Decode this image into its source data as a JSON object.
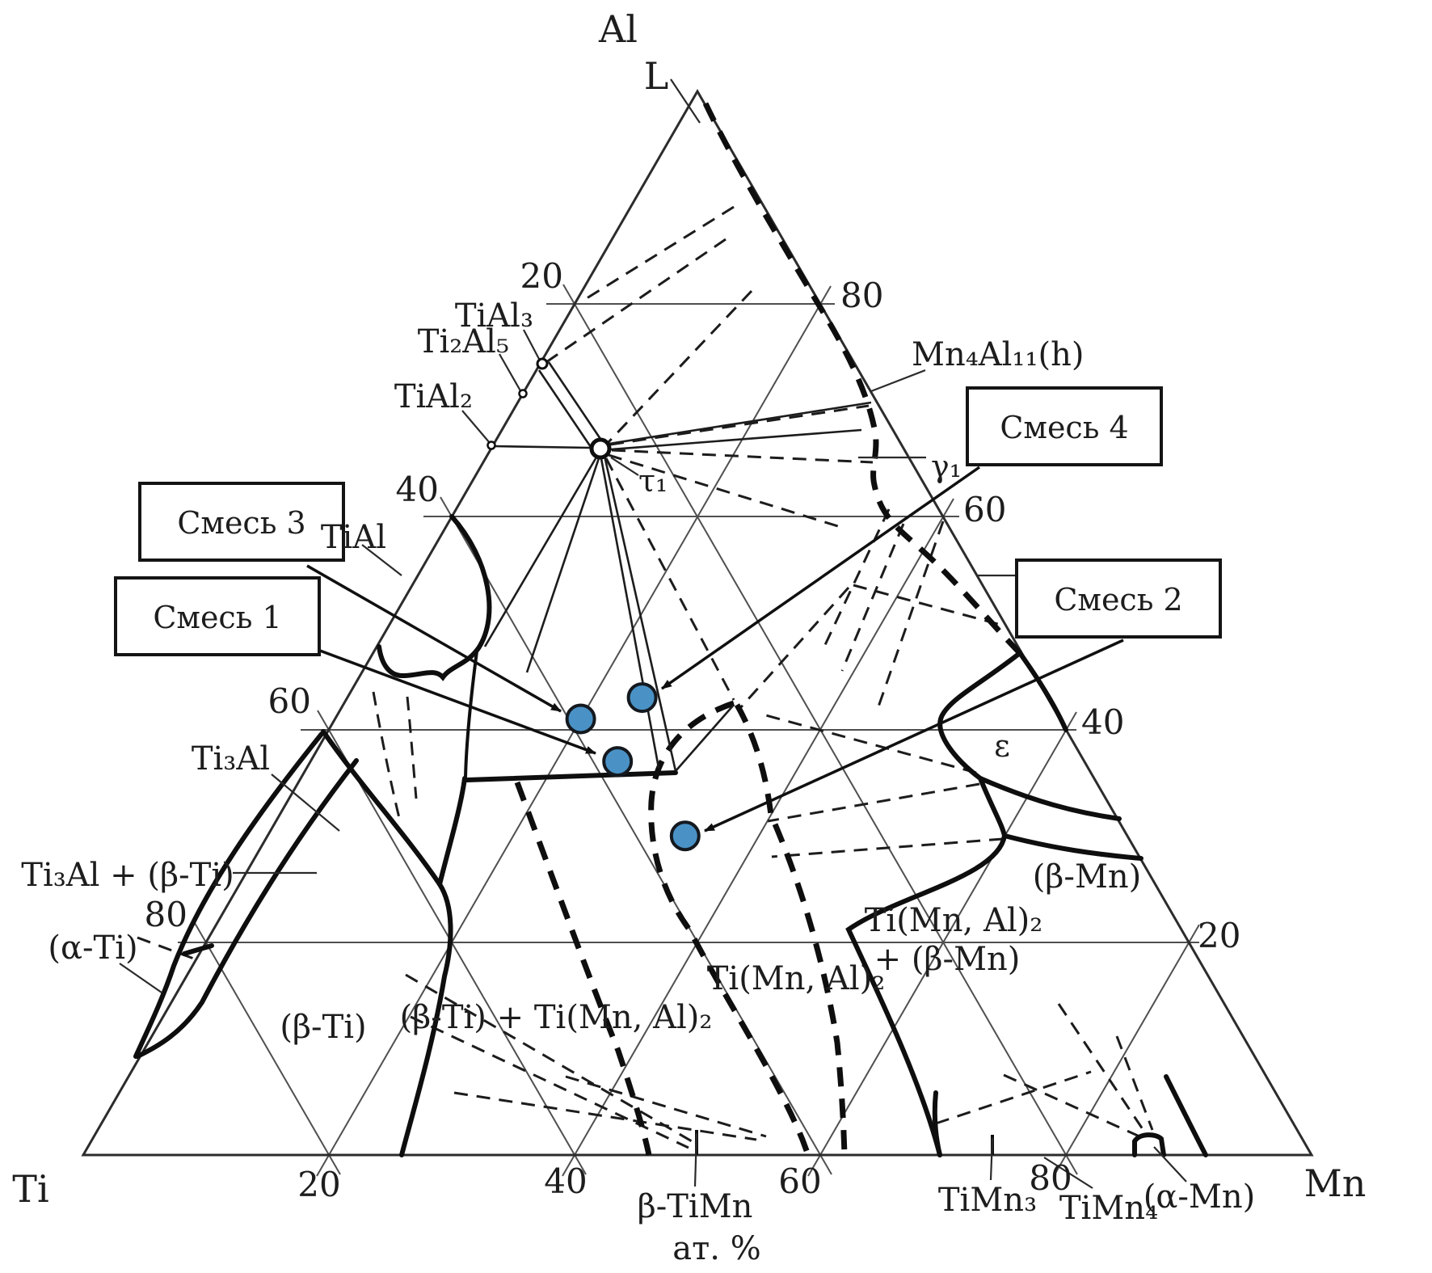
{
  "diagram": {
    "vertex_top": "Al",
    "vertex_bottom_left": "Ti",
    "vertex_bottom_right": "Mn",
    "liquid_label": "L",
    "axis_unit": "ат. %"
  },
  "ticks": {
    "left": [
      "20",
      "40",
      "60",
      "80"
    ],
    "right": [
      "80",
      "60",
      "40",
      "20"
    ],
    "bottom": [
      "20",
      "40",
      "60",
      "80"
    ]
  },
  "phases": {
    "tial3": "TiAl₃",
    "ti2al5": "Ti₂Al₅",
    "tial2": "TiAl₂",
    "tial": "TiAl",
    "ti3al": "Ti₃Al",
    "ti3al_bti": "Ti₃Al + (β-Ti)",
    "alpha_ti": "(α-Ti)",
    "beta_ti": "(β-Ti)",
    "bti_laves": "(β-Ti) + Ti(Mn, Al)₂",
    "laves": "Ti(Mn, Al)₂",
    "laves_bmn_line1": "Ti(Mn, Al)₂",
    "laves_bmn_line2": "+ (β-Mn)",
    "beta_mn": "(β-Mn)",
    "beta_timn": "β-TiMn",
    "timn3": "TiMn₃",
    "timn4": "TiMn₄",
    "alpha_mn": "(α-Mn)",
    "mn4al11": "Mn₄Al₁₁(h)",
    "gamma1": "γ₁",
    "tau1": "τ₁",
    "epsilon": "ε"
  },
  "mixtures": [
    {
      "box_label": "Смесь 3",
      "al_pct": 41,
      "mn_pct": 20
    },
    {
      "box_label": "Смесь 1",
      "al_pct": 37,
      "mn_pct": 25
    },
    {
      "box_label": "Смесь 4",
      "al_pct": 43,
      "mn_pct": 24
    },
    {
      "box_label": "Смесь 2",
      "al_pct": 30,
      "mn_pct": 34
    }
  ],
  "colors": {
    "point_fill": "#4a92c6",
    "point_stroke": "#14191f"
  }
}
